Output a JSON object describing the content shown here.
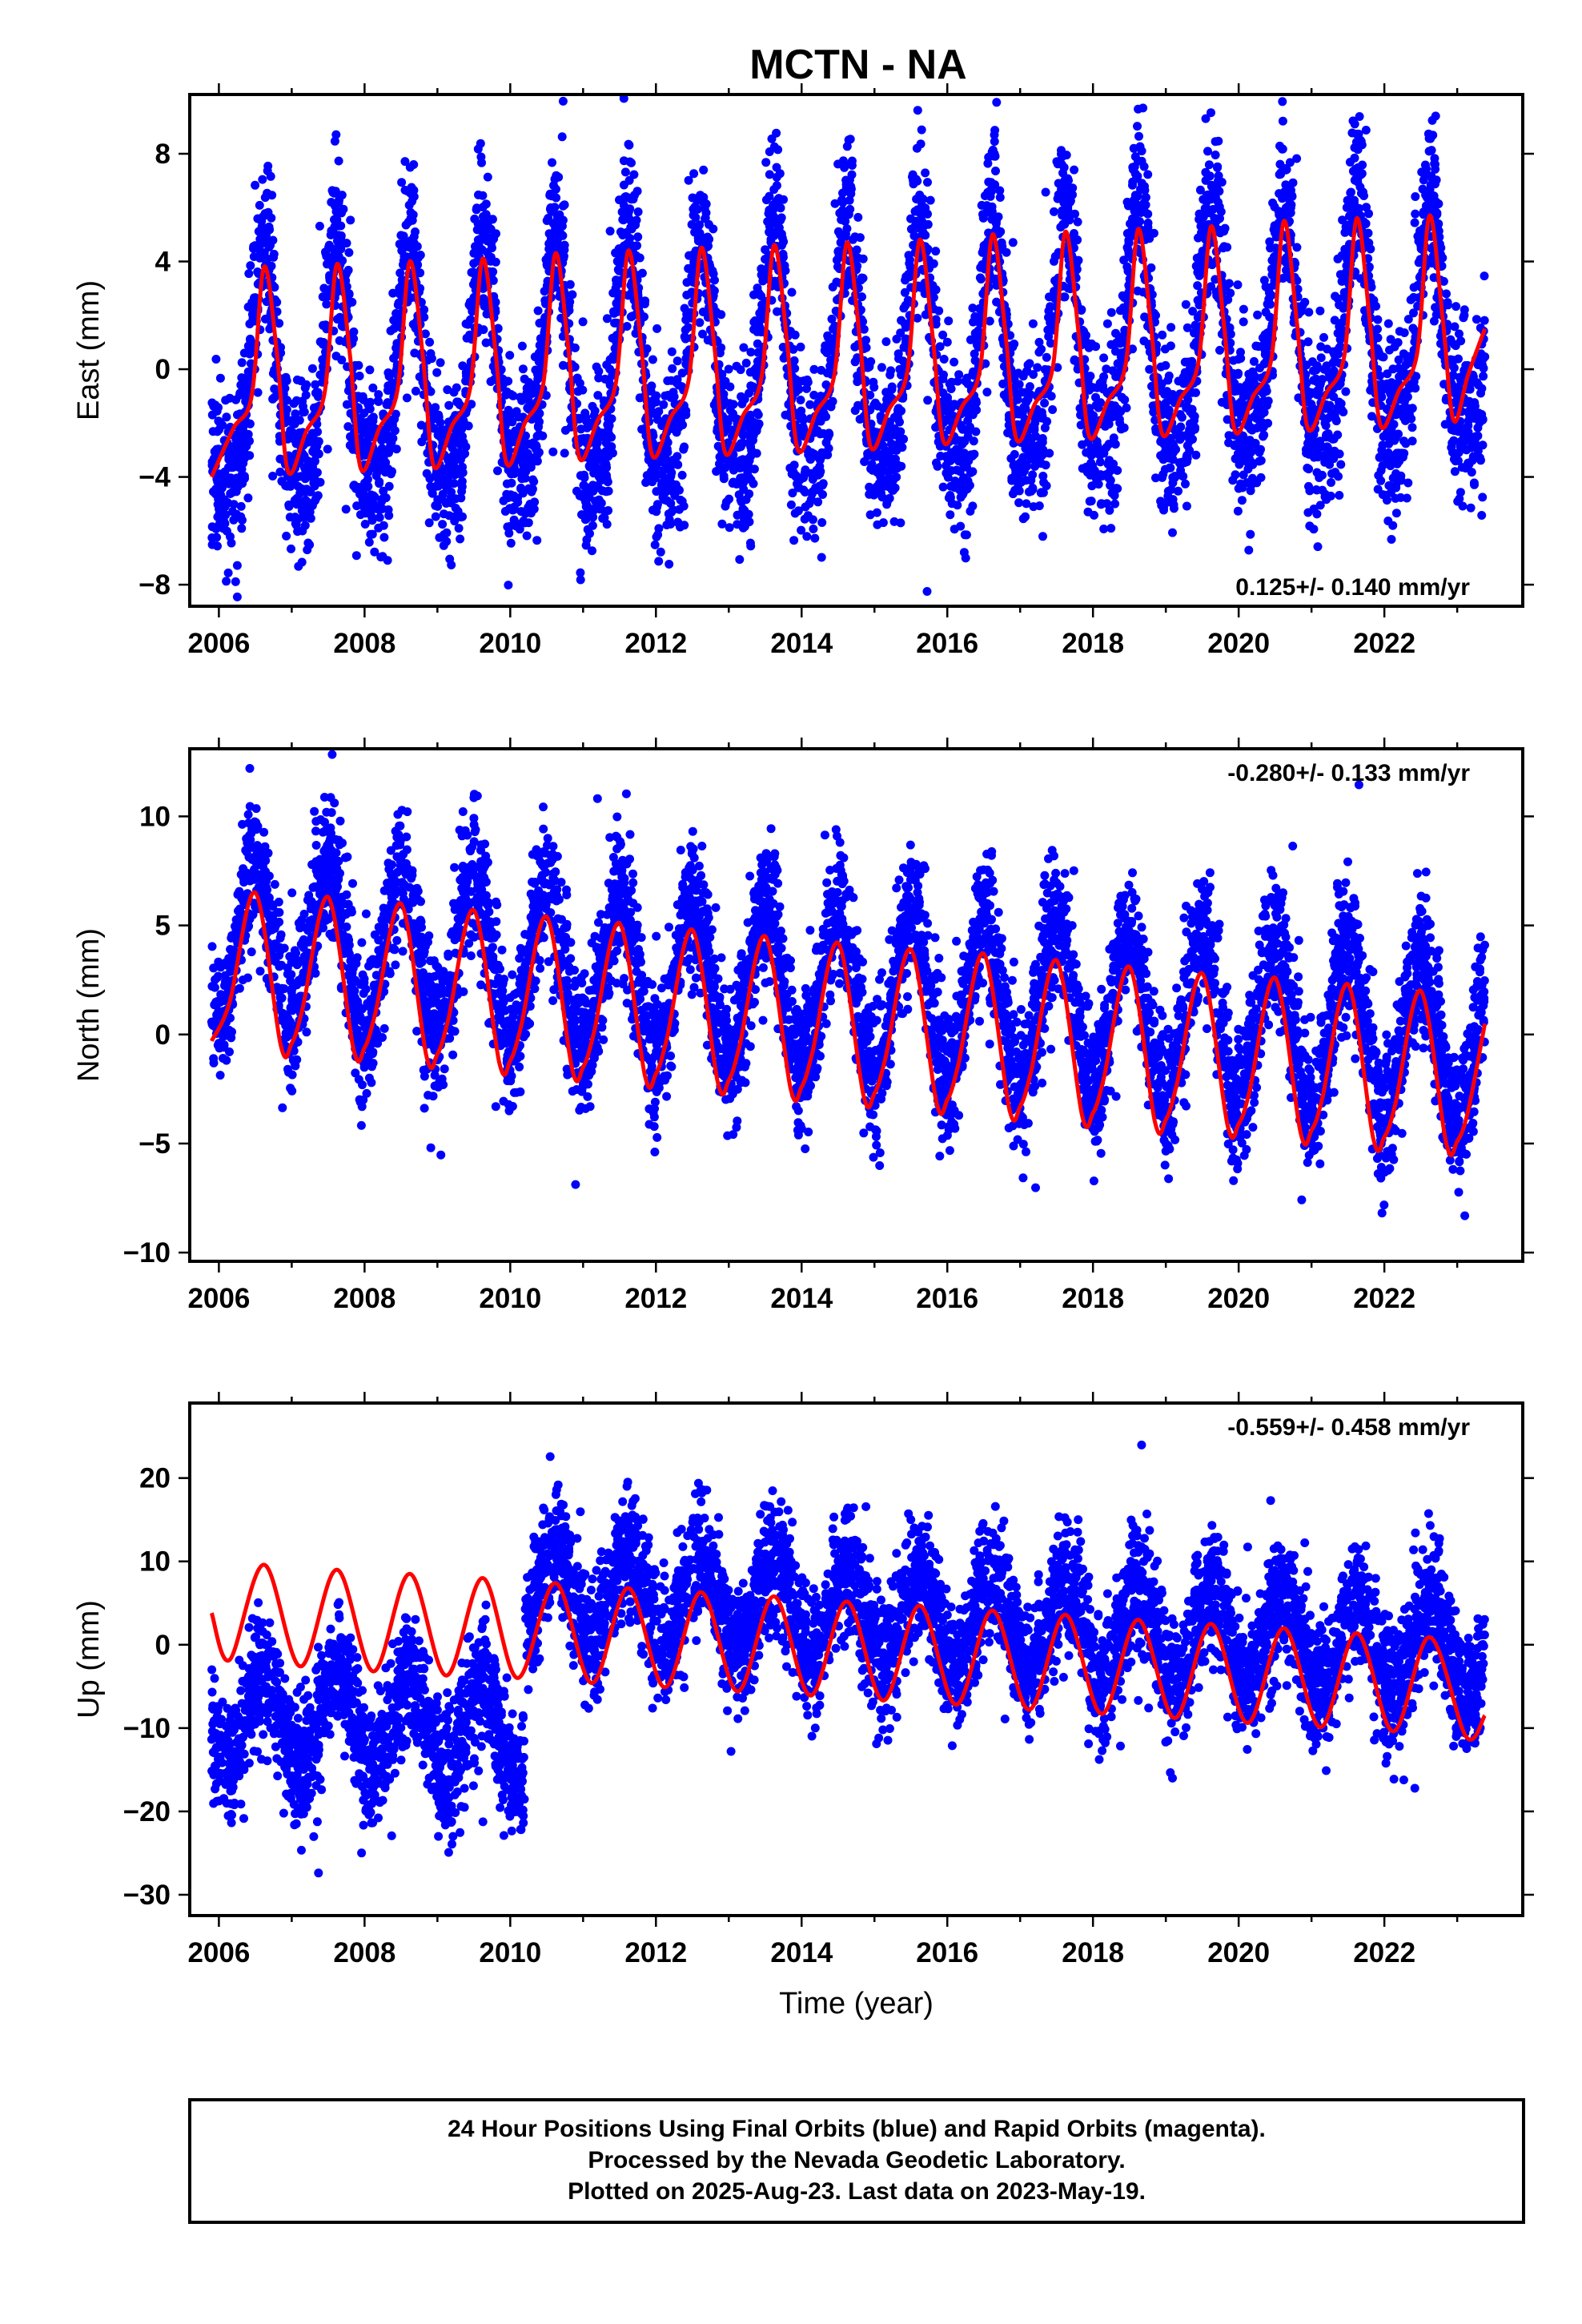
{
  "title": "MCTN - NA",
  "chart_data": [
    {
      "type": "scatter",
      "panel": "east",
      "ylabel": "East (mm)",
      "xlabel": "",
      "xlim": [
        2005.6,
        2023.9
      ],
      "ylim": [
        -8.8,
        10.2
      ],
      "x_ticks": [
        2006,
        2008,
        2010,
        2012,
        2014,
        2016,
        2018,
        2020,
        2022
      ],
      "y_ticks": [
        -8,
        -4,
        0,
        4,
        8
      ],
      "y_tick_labels": [
        "−8",
        "−4",
        "0",
        "4",
        "8"
      ],
      "rate_label": "0.125+/- 0.140 mm/yr",
      "rate_position": "bottom-right",
      "data_start": 2005.9,
      "data_end": 2023.38,
      "series": [
        {
          "kind": "observations",
          "color": "#0000ff",
          "trend": 0.125,
          "offset": 0.2,
          "annual_amplitude": 4.3,
          "annual_peak_phase": 0.62,
          "semiannual_amplitude": 1.1,
          "scatter_sd": 1.6
        },
        {
          "kind": "model",
          "color": "#ff0000",
          "line_width": 4,
          "points": [
            [
              2005.9,
              -4.0
            ],
            [
              2006.2,
              -2.2
            ],
            [
              2006.45,
              -1.0
            ],
            [
              2006.62,
              3.8
            ],
            [
              2006.8,
              0.5
            ],
            [
              2006.95,
              -3.8
            ],
            [
              2007.2,
              -2.3
            ],
            [
              2007.45,
              -0.9
            ],
            [
              2007.62,
              3.9
            ],
            [
              2007.8,
              0.5
            ],
            [
              2007.95,
              -3.7
            ],
            [
              2008.2,
              -2.2
            ],
            [
              2008.45,
              -0.8
            ],
            [
              2008.62,
              4.0
            ],
            [
              2008.8,
              0.5
            ],
            [
              2008.95,
              -3.6
            ],
            [
              2009.2,
              -2.1
            ],
            [
              2009.45,
              -0.7
            ],
            [
              2009.62,
              4.1
            ],
            [
              2009.8,
              0.6
            ],
            [
              2009.95,
              -3.5
            ],
            [
              2010.2,
              -2.0
            ],
            [
              2010.45,
              -0.6
            ],
            [
              2010.62,
              4.3
            ],
            [
              2010.8,
              0.7
            ],
            [
              2010.95,
              -3.3
            ],
            [
              2011.2,
              -1.9
            ],
            [
              2011.45,
              -0.5
            ],
            [
              2011.62,
              4.4
            ],
            [
              2011.8,
              0.8
            ],
            [
              2011.95,
              -3.2
            ],
            [
              2012.2,
              -1.8
            ],
            [
              2012.45,
              -0.4
            ],
            [
              2012.62,
              4.5
            ],
            [
              2012.8,
              0.9
            ],
            [
              2012.95,
              -3.1
            ],
            [
              2013.2,
              -1.7
            ],
            [
              2013.45,
              -0.3
            ],
            [
              2013.62,
              4.6
            ],
            [
              2013.8,
              1.0
            ],
            [
              2013.95,
              -3.0
            ],
            [
              2014.2,
              -1.6
            ],
            [
              2014.45,
              -0.2
            ],
            [
              2014.62,
              4.7
            ],
            [
              2014.8,
              1.1
            ],
            [
              2014.95,
              -2.9
            ],
            [
              2015.2,
              -1.5
            ],
            [
              2015.45,
              -0.1
            ],
            [
              2015.62,
              4.8
            ],
            [
              2015.8,
              1.2
            ],
            [
              2015.95,
              -2.7
            ],
            [
              2016.2,
              -1.4
            ],
            [
              2016.45,
              0.0
            ],
            [
              2016.62,
              5.0
            ],
            [
              2016.8,
              1.3
            ],
            [
              2016.95,
              -2.6
            ],
            [
              2017.2,
              -1.3
            ],
            [
              2017.45,
              0.1
            ],
            [
              2017.62,
              5.1
            ],
            [
              2017.8,
              1.4
            ],
            [
              2017.95,
              -2.5
            ],
            [
              2018.2,
              -1.2
            ],
            [
              2018.45,
              0.2
            ],
            [
              2018.62,
              5.2
            ],
            [
              2018.8,
              1.5
            ],
            [
              2018.95,
              -2.4
            ],
            [
              2019.2,
              -1.1
            ],
            [
              2019.45,
              0.3
            ],
            [
              2019.62,
              5.3
            ],
            [
              2019.8,
              1.6
            ],
            [
              2019.95,
              -2.3
            ],
            [
              2020.2,
              -1.0
            ],
            [
              2020.45,
              0.4
            ],
            [
              2020.62,
              5.5
            ],
            [
              2020.8,
              1.7
            ],
            [
              2020.95,
              -2.2
            ],
            [
              2021.2,
              -0.9
            ],
            [
              2021.45,
              0.5
            ],
            [
              2021.62,
              5.6
            ],
            [
              2021.8,
              1.8
            ],
            [
              2021.95,
              -2.1
            ],
            [
              2022.2,
              -0.8
            ],
            [
              2022.45,
              0.6
            ],
            [
              2022.62,
              5.7
            ],
            [
              2022.8,
              1.9
            ],
            [
              2022.95,
              -1.9
            ],
            [
              2023.15,
              -0.2
            ],
            [
              2023.38,
              1.5
            ]
          ]
        }
      ]
    },
    {
      "type": "scatter",
      "panel": "north",
      "ylabel": "North (mm)",
      "xlabel": "",
      "xlim": [
        2005.6,
        2023.9
      ],
      "ylim": [
        -10.4,
        13.1
      ],
      "x_ticks": [
        2006,
        2008,
        2010,
        2012,
        2014,
        2016,
        2018,
        2020,
        2022
      ],
      "y_ticks": [
        -10,
        -5,
        0,
        5,
        10
      ],
      "y_tick_labels": [
        "−10",
        "−5",
        "0",
        "5",
        "10"
      ],
      "rate_label": "-0.280+/- 0.133 mm/yr",
      "rate_position": "top-right",
      "data_start": 2005.9,
      "data_end": 2023.38,
      "series": [
        {
          "kind": "observations",
          "color": "#0000ff",
          "trend": -0.28,
          "offset": 2.0,
          "annual_amplitude": 3.7,
          "annual_peak_phase": 0.5,
          "semiannual_amplitude": 0.0,
          "scatter_sd": 1.6
        },
        {
          "kind": "model",
          "color": "#ff0000",
          "line_width": 4,
          "points": [
            [
              2005.9,
              -0.3
            ],
            [
              2006.15,
              1.5
            ],
            [
              2006.5,
              6.5
            ],
            [
              2006.85,
              -0.5
            ],
            [
              2007.0,
              -0.4
            ],
            [
              2007.15,
              1.2
            ],
            [
              2007.5,
              6.3
            ],
            [
              2007.85,
              -0.7
            ],
            [
              2008.0,
              -0.6
            ],
            [
              2008.15,
              1.0
            ],
            [
              2008.5,
              6.0
            ],
            [
              2008.85,
              -1.0
            ],
            [
              2009.0,
              -0.9
            ],
            [
              2009.15,
              0.7
            ],
            [
              2009.5,
              5.7
            ],
            [
              2009.85,
              -1.3
            ],
            [
              2010.0,
              -1.2
            ],
            [
              2010.15,
              0.4
            ],
            [
              2010.5,
              5.4
            ],
            [
              2010.85,
              -1.6
            ],
            [
              2011.0,
              -1.5
            ],
            [
              2011.15,
              0.1
            ],
            [
              2011.5,
              5.1
            ],
            [
              2011.85,
              -1.9
            ],
            [
              2012.0,
              -1.8
            ],
            [
              2012.15,
              -0.2
            ],
            [
              2012.5,
              4.8
            ],
            [
              2012.85,
              -2.2
            ],
            [
              2013.0,
              -2.1
            ],
            [
              2013.15,
              -0.5
            ],
            [
              2013.5,
              4.5
            ],
            [
              2013.85,
              -2.5
            ],
            [
              2014.0,
              -2.4
            ],
            [
              2014.15,
              -0.8
            ],
            [
              2014.5,
              4.2
            ],
            [
              2014.85,
              -2.8
            ],
            [
              2015.0,
              -2.7
            ],
            [
              2015.15,
              -1.1
            ],
            [
              2015.5,
              3.9
            ],
            [
              2015.85,
              -3.1
            ],
            [
              2016.0,
              -3.0
            ],
            [
              2016.15,
              -1.4
            ],
            [
              2016.5,
              3.7
            ],
            [
              2016.85,
              -3.4
            ],
            [
              2017.0,
              -3.3
            ],
            [
              2017.15,
              -1.7
            ],
            [
              2017.5,
              3.4
            ],
            [
              2017.85,
              -3.7
            ],
            [
              2018.0,
              -3.6
            ],
            [
              2018.15,
              -2.0
            ],
            [
              2018.5,
              3.1
            ],
            [
              2018.85,
              -4.0
            ],
            [
              2019.0,
              -3.9
            ],
            [
              2019.15,
              -2.3
            ],
            [
              2019.5,
              2.8
            ],
            [
              2019.85,
              -4.2
            ],
            [
              2020.0,
              -4.1
            ],
            [
              2020.15,
              -2.6
            ],
            [
              2020.5,
              2.6
            ],
            [
              2020.85,
              -4.5
            ],
            [
              2021.0,
              -4.4
            ],
            [
              2021.15,
              -2.9
            ],
            [
              2021.5,
              2.3
            ],
            [
              2021.85,
              -4.8
            ],
            [
              2022.0,
              -4.7
            ],
            [
              2022.15,
              -3.2
            ],
            [
              2022.5,
              2.0
            ],
            [
              2022.85,
              -5.0
            ],
            [
              2023.0,
              -4.9
            ],
            [
              2023.15,
              -3.5
            ],
            [
              2023.38,
              0.5
            ]
          ]
        }
      ]
    },
    {
      "type": "scatter",
      "panel": "up",
      "ylabel": "Up (mm)",
      "xlabel": "Time (year)",
      "xlim": [
        2005.6,
        2023.9
      ],
      "ylim": [
        -32.5,
        29
      ],
      "x_ticks": [
        2006,
        2008,
        2010,
        2012,
        2014,
        2016,
        2018,
        2020,
        2022
      ],
      "y_ticks": [
        -30,
        -20,
        -10,
        0,
        10,
        20
      ],
      "y_tick_labels": [
        "−30",
        "−20",
        "−10",
        "0",
        "10",
        "20"
      ],
      "rate_label": "-0.559+/- 0.458 mm/yr",
      "rate_position": "top-right",
      "data_start": 2005.9,
      "data_end": 2023.38,
      "offset_step": {
        "year": 2010.2,
        "before": -13.0,
        "after": 4.0
      },
      "series": [
        {
          "kind": "observations",
          "color": "#0000ff",
          "trend": -0.559,
          "annual_amplitude": 5.5,
          "annual_peak_phase": 0.62,
          "semiannual_amplitude": 0.0,
          "scatter_sd": 3.8
        },
        {
          "kind": "model",
          "color": "#ff0000",
          "line_width": 4,
          "points": [
            [
              2005.9,
              3.8
            ],
            [
              2006.15,
              -1.8
            ],
            [
              2006.62,
              9.6
            ],
            [
              2007.12,
              -2.6
            ],
            [
              2007.62,
              9.0
            ],
            [
              2008.12,
              -3.2
            ],
            [
              2008.62,
              8.5
            ],
            [
              2009.12,
              -3.7
            ],
            [
              2009.62,
              8.0
            ],
            [
              2010.1,
              -4.0
            ],
            [
              2010.62,
              7.4
            ],
            [
              2011.12,
              -4.6
            ],
            [
              2011.62,
              6.8
            ],
            [
              2012.12,
              -5.1
            ],
            [
              2012.62,
              6.3
            ],
            [
              2013.12,
              -5.6
            ],
            [
              2013.62,
              5.8
            ],
            [
              2014.12,
              -6.1
            ],
            [
              2014.62,
              5.2
            ],
            [
              2015.12,
              -6.7
            ],
            [
              2015.62,
              4.7
            ],
            [
              2016.12,
              -7.2
            ],
            [
              2016.62,
              4.1
            ],
            [
              2017.12,
              -7.8
            ],
            [
              2017.62,
              3.6
            ],
            [
              2018.12,
              -8.3
            ],
            [
              2018.62,
              3.0
            ],
            [
              2019.12,
              -8.8
            ],
            [
              2019.62,
              2.5
            ],
            [
              2020.12,
              -9.4
            ],
            [
              2020.62,
              2.0
            ],
            [
              2021.12,
              -9.9
            ],
            [
              2021.62,
              1.4
            ],
            [
              2022.12,
              -10.4
            ],
            [
              2022.62,
              0.9
            ],
            [
              2023.12,
              -11.0
            ],
            [
              2023.38,
              -8.5
            ]
          ]
        }
      ]
    }
  ],
  "footer": {
    "line1": "24 Hour Positions Using Final Orbits (blue) and Rapid Orbits (magenta).",
    "line2": "Processed by the Nevada Geodetic Laboratory.",
    "line3": "Plotted on 2025-Aug-23. Last data on 2023-May-19."
  }
}
